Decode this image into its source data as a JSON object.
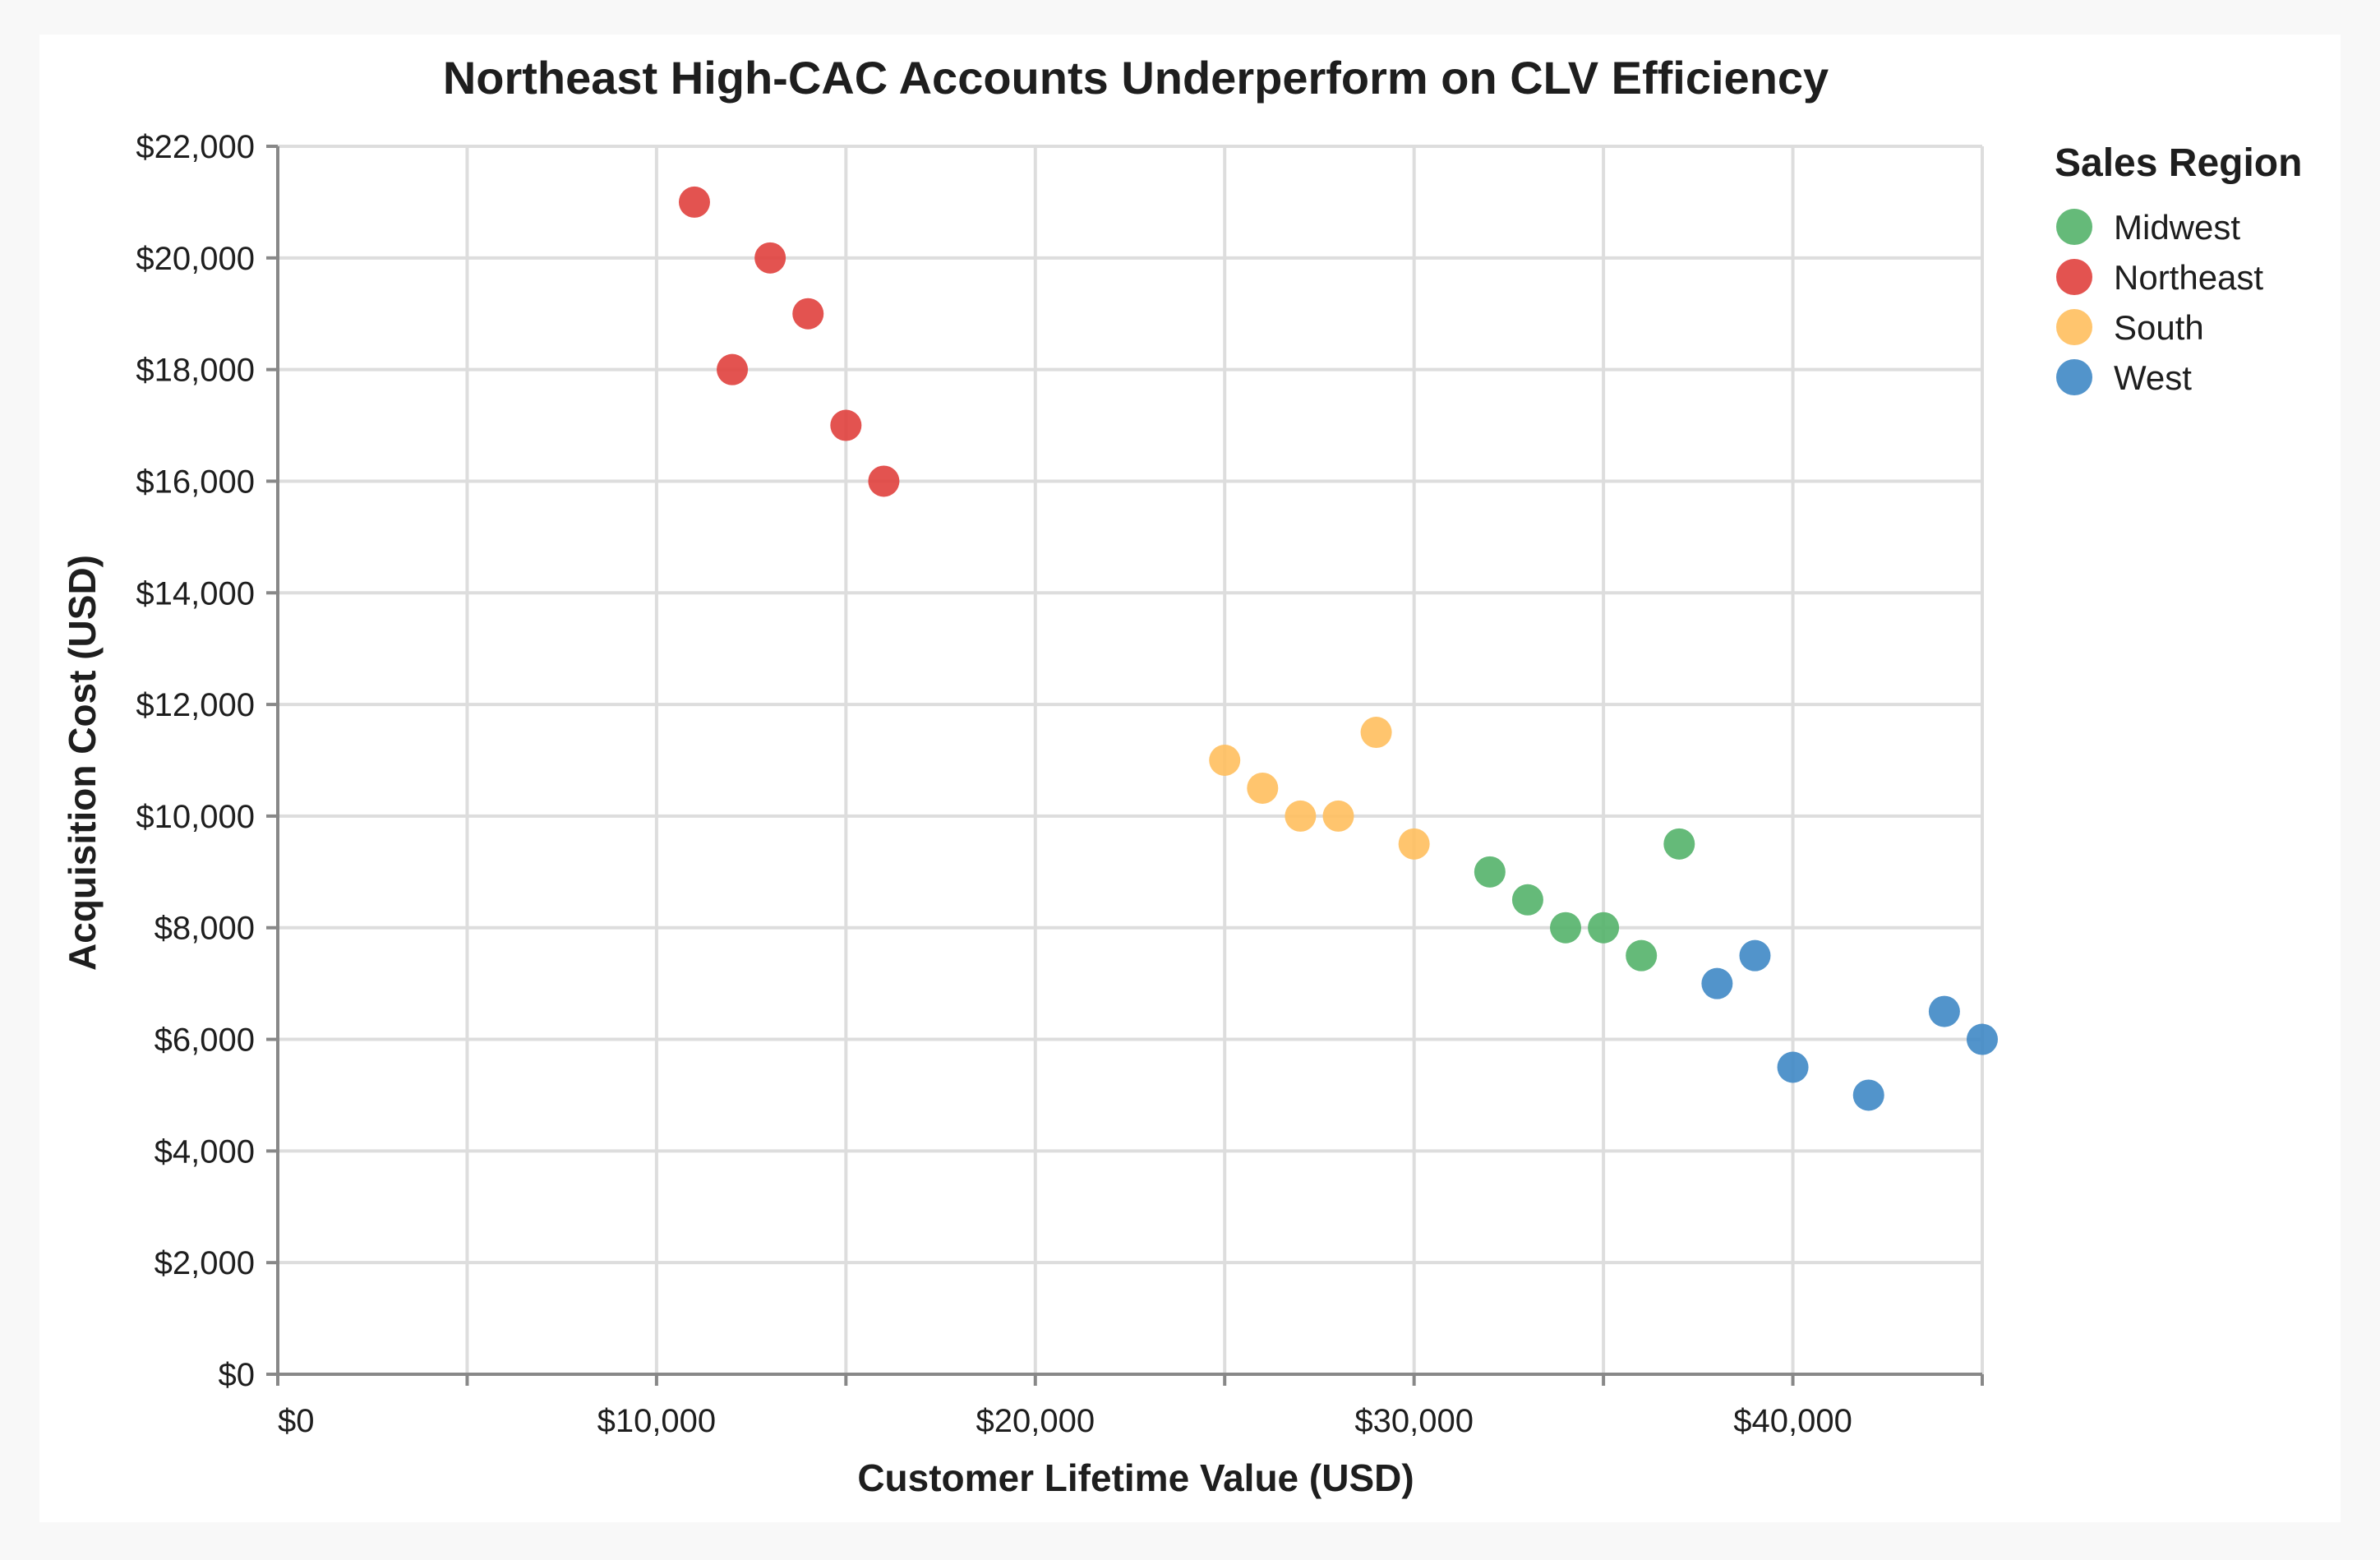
{
  "chart_data": {
    "type": "scatter",
    "title": "Northeast High-CAC Accounts Underperform on CLV Efficiency",
    "xlabel": "Customer Lifetime Value (USD)",
    "ylabel": "Acquisition Cost (USD)",
    "xlim": [
      0,
      45000
    ],
    "ylim": [
      0,
      22000
    ],
    "x_ticks": [
      0,
      5000,
      10000,
      15000,
      20000,
      25000,
      30000,
      35000,
      40000,
      45000
    ],
    "x_tick_labels": [
      "$0",
      "",
      "$10,000",
      "",
      "$20,000",
      "",
      "$30,000",
      "",
      "$40,000",
      ""
    ],
    "y_ticks": [
      0,
      2000,
      4000,
      6000,
      8000,
      10000,
      12000,
      14000,
      16000,
      18000,
      20000,
      22000
    ],
    "y_tick_labels": [
      "$0",
      "$2,000",
      "$4,000",
      "$6,000",
      "$8,000",
      "$10,000",
      "$12,000",
      "$14,000",
      "$16,000",
      "$18,000",
      "$20,000",
      "$22,000"
    ],
    "grid": true,
    "legend": {
      "title": "Sales Region",
      "position": "top-right"
    },
    "series": [
      {
        "name": "Midwest",
        "color": "#54b36a",
        "points": [
          {
            "x": 32000,
            "y": 9000
          },
          {
            "x": 33000,
            "y": 8500
          },
          {
            "x": 34000,
            "y": 8000
          },
          {
            "x": 35000,
            "y": 8000
          },
          {
            "x": 36000,
            "y": 7500
          },
          {
            "x": 37000,
            "y": 9500
          }
        ]
      },
      {
        "name": "Northeast",
        "color": "#e0403d",
        "points": [
          {
            "x": 11000,
            "y": 21000
          },
          {
            "x": 12000,
            "y": 18000
          },
          {
            "x": 13000,
            "y": 20000
          },
          {
            "x": 14000,
            "y": 19000
          },
          {
            "x": 15000,
            "y": 17000
          },
          {
            "x": 16000,
            "y": 16000
          }
        ]
      },
      {
        "name": "South",
        "color": "#ffbf5e",
        "points": [
          {
            "x": 25000,
            "y": 11000
          },
          {
            "x": 26000,
            "y": 10500
          },
          {
            "x": 27000,
            "y": 10000
          },
          {
            "x": 28000,
            "y": 10000
          },
          {
            "x": 29000,
            "y": 11500
          },
          {
            "x": 30000,
            "y": 9500
          }
        ]
      },
      {
        "name": "West",
        "color": "#3f88c5",
        "points": [
          {
            "x": 38000,
            "y": 7000
          },
          {
            "x": 39000,
            "y": 7500
          },
          {
            "x": 40000,
            "y": 5500
          },
          {
            "x": 42000,
            "y": 5000
          },
          {
            "x": 44000,
            "y": 6500
          },
          {
            "x": 45000,
            "y": 6000
          }
        ]
      }
    ]
  }
}
